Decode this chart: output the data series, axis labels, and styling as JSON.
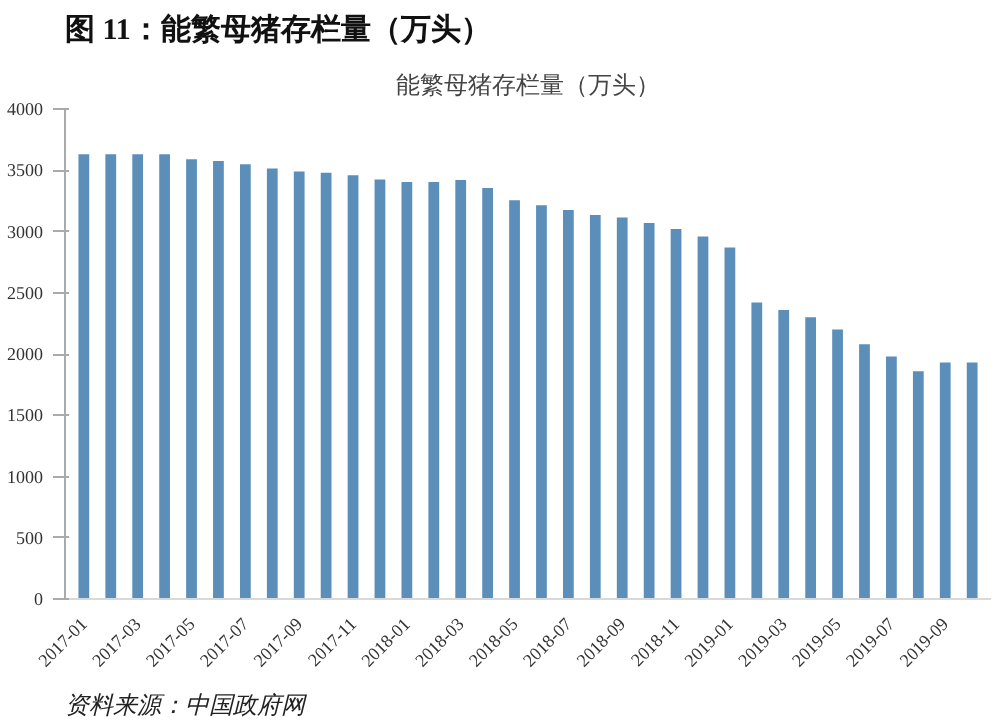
{
  "chart_data": {
    "type": "bar",
    "title": "图 11：能繁母猪存栏量（万头）",
    "subtitle": "能繁母猪存栏量（万头）",
    "categories": [
      "2017-01",
      null,
      "2017-03",
      null,
      "2017-05",
      null,
      "2017-07",
      null,
      "2017-09",
      null,
      "2017-11",
      null,
      "2018-01",
      null,
      "2018-03",
      null,
      "2018-05",
      null,
      "2018-07",
      null,
      "2018-09",
      null,
      "2018-11",
      null,
      "2019-01",
      null,
      "2019-03",
      null,
      "2019-05",
      null,
      "2019-07",
      null,
      "2019-09",
      null
    ],
    "series": [
      {
        "color": "#5b8fba",
        "values": [
          3630,
          3630,
          3630,
          3630,
          3590,
          3575,
          3550,
          3515,
          3490,
          3480,
          3460,
          3425,
          3405,
          3405,
          3420,
          3355,
          3255,
          3215,
          3175,
          3135,
          3115,
          3070,
          3020,
          2960,
          2870,
          2420,
          2360,
          2300,
          2200,
          2080,
          1980,
          1860,
          1930,
          1930
        ]
      }
    ],
    "ylim": [
      0,
      4000
    ],
    "yticks": [
      0,
      500,
      1000,
      1500,
      2000,
      2500,
      3000,
      3500,
      4000
    ],
    "grid": false,
    "annotations": [
      "资料来源：中国政府网"
    ]
  }
}
